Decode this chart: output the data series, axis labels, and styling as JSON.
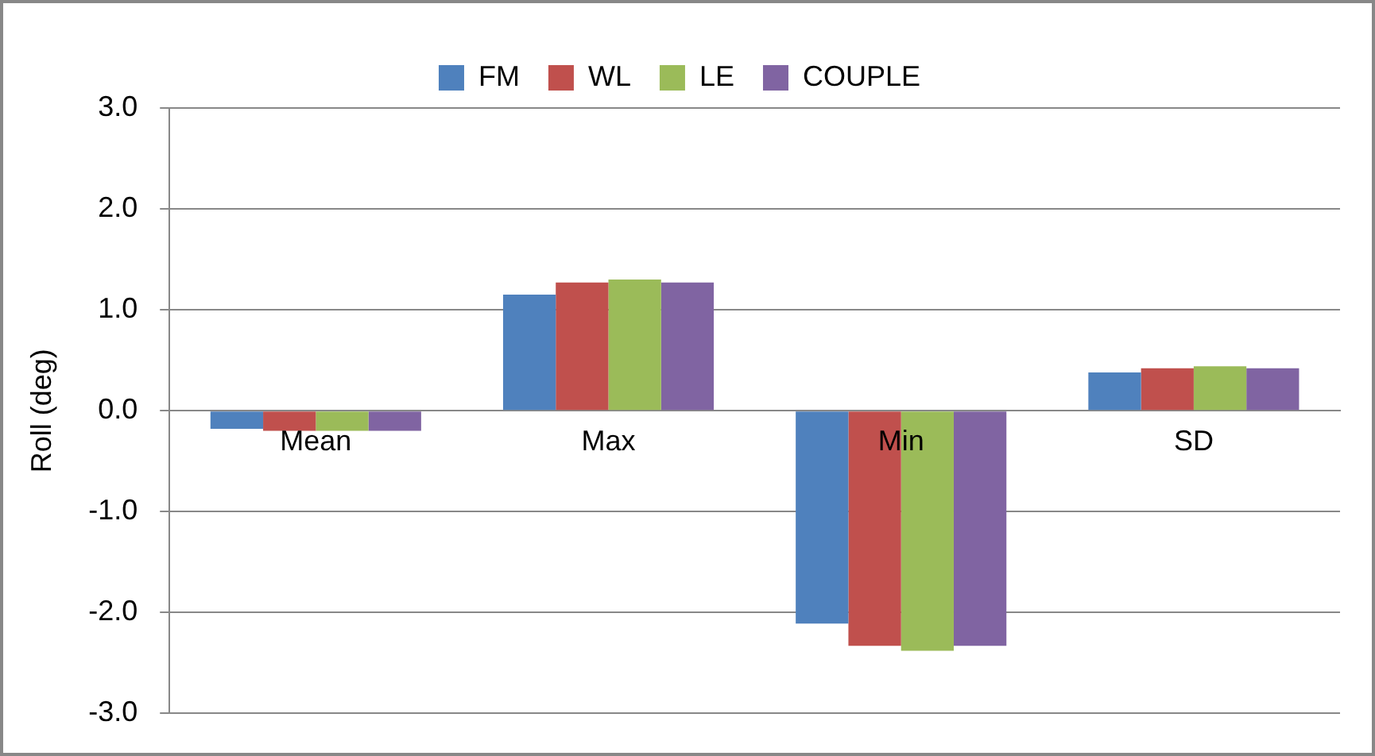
{
  "chart_data": {
    "type": "bar",
    "ylabel": "Roll (deg)",
    "categories": [
      "Mean",
      "Max",
      "Min",
      "SD"
    ],
    "series": [
      {
        "name": "FM",
        "color": "#4f81bd",
        "values": [
          -0.18,
          1.15,
          -2.11,
          0.38
        ]
      },
      {
        "name": "WL",
        "color": "#c0504d",
        "values": [
          -0.2,
          1.27,
          -2.33,
          0.42
        ]
      },
      {
        "name": "LE",
        "color": "#9bbb59",
        "values": [
          -0.2,
          1.3,
          -2.38,
          0.44
        ]
      },
      {
        "name": "COUPLE",
        "color": "#8064a2",
        "values": [
          -0.2,
          1.27,
          -2.33,
          0.42
        ]
      }
    ],
    "ylim": [
      -3,
      3
    ],
    "yticks": [
      {
        "value": -3,
        "label": "-3.0"
      },
      {
        "value": -2,
        "label": "-2.0"
      },
      {
        "value": -1,
        "label": "-1.0"
      },
      {
        "value": 0,
        "label": "0.0"
      },
      {
        "value": 1,
        "label": "1.0"
      },
      {
        "value": 2,
        "label": "2.0"
      },
      {
        "value": 3,
        "label": "3.0"
      }
    ],
    "grid": "y",
    "legend": "top"
  }
}
